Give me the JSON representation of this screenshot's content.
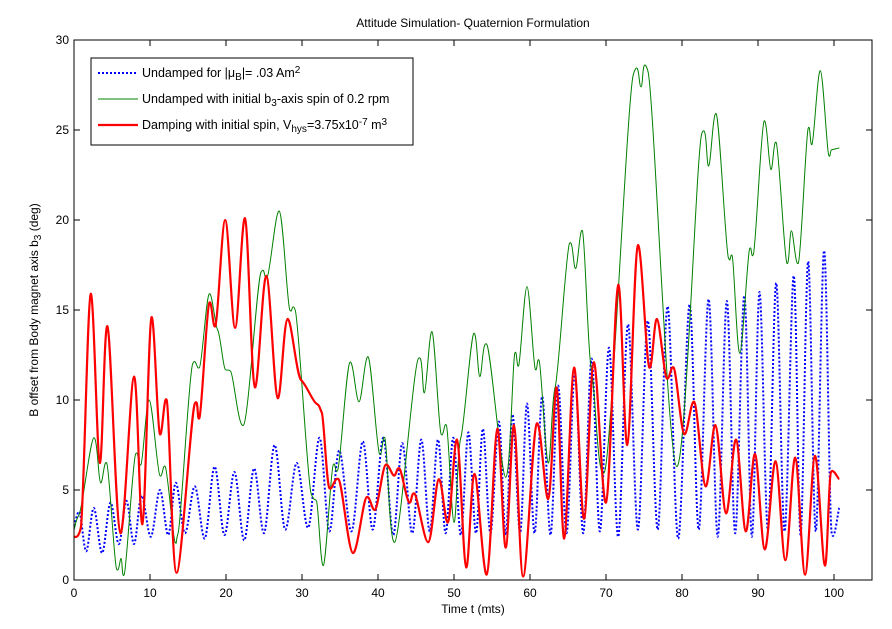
{
  "chart_data": {
    "type": "line",
    "title": "Attitude Simulation- Quaternion Formulation",
    "xlabel": "Time t (mts)",
    "ylabel_segments": [
      {
        "text": "B offset from Body magnet axis b",
        "style": "normal"
      },
      {
        "text": "3",
        "style": "sub"
      },
      {
        "text": " (deg)",
        "style": "normal"
      }
    ],
    "xlim": [
      0,
      105
    ],
    "ylim": [
      0,
      30
    ],
    "xticks": [
      0,
      10,
      20,
      30,
      40,
      50,
      60,
      70,
      80,
      90,
      100
    ],
    "yticks": [
      0,
      5,
      10,
      15,
      20,
      25,
      30
    ],
    "grid": false,
    "legend_position": "top-left",
    "series": [
      {
        "name": "Undamped for |μB|= .03 Am2",
        "legend_segments": [
          {
            "text": "Undamped for |μ",
            "style": "normal"
          },
          {
            "text": "B",
            "style": "sub"
          },
          {
            "text": "|= .03 Am",
            "style": "normal"
          },
          {
            "text": "2",
            "style": "sup"
          }
        ],
        "color": "#0000ff",
        "line_style": "dotted",
        "x": [
          0,
          0.7,
          1.6,
          2.6,
          3.7,
          4.8,
          5.9,
          6.9,
          7.9,
          8.9,
          10.1,
          11.3,
          12.4,
          13.4,
          14.6,
          15.9,
          17.2,
          18.5,
          19.8,
          21.1,
          22.4,
          23.7,
          25.0,
          26.4,
          27.8,
          29.3,
          30.8,
          32.3,
          33.6,
          34.9,
          36.5,
          38.0,
          39.3,
          40.7,
          42.0,
          43.2,
          44.5,
          45.7,
          46.8,
          47.9,
          48.9,
          49.9,
          50.9,
          51.9,
          52.9,
          53.8,
          54.8,
          55.9,
          56.8,
          57.7,
          58.7,
          59.6,
          60.6,
          61.6,
          62.7,
          63.7,
          64.8,
          65.9,
          67.0,
          68.1,
          69.2,
          70.4,
          71.6,
          72.9,
          74.2,
          75.5,
          76.8,
          78.1,
          79.5,
          81.0,
          82.2,
          83.5,
          84.7,
          85.9,
          87.0,
          88.2,
          89.2,
          90.2,
          91.3,
          92.4,
          93.5,
          94.7,
          95.6,
          96.6,
          97.6,
          98.7,
          99.7,
          100.7
        ],
        "y": [
          3.0,
          3.8,
          1.6,
          4.0,
          1.5,
          4.3,
          2.0,
          4.4,
          2.0,
          4.7,
          2.4,
          5.0,
          2.5,
          5.4,
          2.6,
          5.2,
          2.3,
          6.3,
          2.5,
          6.0,
          2.2,
          6.2,
          2.6,
          7.5,
          2.8,
          6.5,
          2.9,
          7.9,
          2.7,
          7.2,
          2.7,
          7.7,
          2.8,
          7.9,
          2.5,
          7.6,
          2.6,
          7.8,
          2.7,
          7.8,
          2.6,
          7.9,
          2.5,
          8.2,
          2.6,
          8.4,
          2.6,
          8.8,
          2.5,
          9.2,
          2.6,
          9.8,
          2.6,
          10.2,
          2.5,
          10.8,
          2.6,
          11.5,
          2.6,
          12.3,
          2.7,
          12.9,
          2.4,
          14.2,
          2.8,
          14.4,
          2.8,
          15.2,
          2.3,
          15.3,
          2.8,
          15.6,
          2.4,
          15.5,
          2.6,
          15.8,
          2.4,
          16.0,
          2.8,
          16.5,
          2.7,
          16.9,
          2.5,
          17.7,
          2.7,
          18.3,
          2.6,
          4.0
        ]
      },
      {
        "name": "Undamped with initial b3-axis spin of 0.2 rpm",
        "legend_segments": [
          {
            "text": "Undamped with initial b",
            "style": "normal"
          },
          {
            "text": "3",
            "style": "sub"
          },
          {
            "text": "-axis spin of 0.2 rpm",
            "style": "normal"
          }
        ],
        "color": "#008000",
        "line_style": "solid",
        "x": [
          0,
          0.65,
          2.6,
          3.5,
          4.3,
          5.6,
          6.2,
          6.6,
          8.1,
          8.8,
          9.9,
          11.3,
          12.0,
          13.3,
          13.7,
          15.6,
          16.5,
          17.8,
          18.9,
          19.9,
          20.6,
          22.3,
          24.6,
          25.4,
          27.0,
          28.4,
          29.1,
          31.2,
          31.9,
          32.8,
          34.1,
          34.7,
          36.3,
          37.5,
          38.7,
          40.2,
          40.9,
          42.2,
          45.3,
          46.1,
          47.1,
          48.3,
          49.0,
          50.0,
          50.9,
          52.6,
          53.4,
          54.3,
          56.8,
          58.0,
          58.5,
          59.6,
          60.7,
          61.2,
          62.4,
          63.3,
          65.2,
          66.0,
          66.9,
          68.1,
          69.8,
          73.6,
          74.6,
          75.5,
          79.3,
          82.6,
          83.5,
          84.5,
          86.1,
          86.6,
          87.6,
          88.9,
          89.4,
          90.8,
          91.7,
          92.4,
          93.8,
          94.4,
          95.3,
          96.6,
          97.1,
          98.2,
          99.3,
          99.7,
          100.7
        ],
        "y": [
          2.8,
          3.6,
          7.9,
          5.4,
          6.5,
          0.6,
          1.2,
          0.3,
          7.0,
          6.4,
          10.0,
          5.8,
          6.3,
          2.1,
          2.6,
          12.0,
          11.8,
          15.9,
          13.9,
          11.7,
          11.6,
          8.6,
          17.1,
          16.8,
          20.5,
          15.0,
          15.0,
          4.8,
          4.4,
          0.8,
          6.4,
          6.1,
          12.1,
          9.9,
          12.4,
          7.0,
          7.9,
          2.1,
          12.3,
          10.4,
          13.8,
          8.1,
          8.6,
          3.2,
          7.9,
          13.7,
          11.3,
          13.1,
          5.7,
          12.6,
          11.9,
          16.3,
          11.7,
          12.2,
          6.5,
          10.7,
          18.7,
          17.3,
          19.4,
          11.6,
          6.0,
          28.1,
          27.4,
          28.3,
          6.3,
          24.8,
          23.0,
          25.9,
          17.9,
          18.0,
          12.6,
          18.4,
          18.1,
          25.5,
          22.8,
          24.3,
          17.6,
          19.4,
          17.6,
          25.1,
          24.2,
          28.3,
          23.6,
          23.9,
          24.0
        ]
      },
      {
        "name": "Damping with initial spin, Vhys=3.75x10-7 m3",
        "legend_segments": [
          {
            "text": "Damping with initial spin, V",
            "style": "normal"
          },
          {
            "text": "hys",
            "style": "sub"
          },
          {
            "text": "=3.75x10",
            "style": "normal"
          },
          {
            "text": "-7",
            "style": "sup"
          },
          {
            "text": " m",
            "style": "normal"
          },
          {
            "text": "3",
            "style": "sup"
          }
        ],
        "color": "#ff0000",
        "line_style": "solid-thick",
        "x": [
          0,
          0.9,
          2.2,
          3.4,
          4.4,
          6.1,
          7.9,
          9.0,
          10.2,
          11.3,
          12.2,
          13.5,
          15.9,
          16.5,
          17.8,
          18.6,
          19.9,
          21.2,
          22.5,
          23.8,
          25.3,
          26.8,
          28.1,
          29.9,
          31.9,
          32.6,
          33.6,
          34.8,
          36.7,
          38.5,
          39.6,
          41.0,
          42.1,
          42.8,
          44.1,
          44.8,
          46.6,
          48.0,
          49.2,
          50.4,
          51.6,
          52.7,
          54.3,
          55.7,
          56.8,
          57.9,
          59.1,
          60.9,
          62.4,
          63.5,
          64.5,
          65.8,
          67.1,
          68.4,
          70.0,
          71.6,
          72.8,
          74.2,
          75.7,
          76.7,
          78.0,
          78.9,
          80.3,
          81.6,
          83.1,
          84.4,
          85.8,
          87.1,
          88.4,
          89.6,
          90.9,
          92.3,
          93.6,
          94.9,
          96.2,
          97.5,
          98.8,
          99.6,
          100.7
        ],
        "y": [
          2.4,
          2.9,
          15.9,
          6.5,
          14.1,
          2.6,
          11.3,
          3.1,
          14.6,
          8.1,
          10.0,
          0.4,
          9.8,
          9.0,
          15.4,
          14.1,
          20.0,
          14.0,
          20.1,
          10.7,
          16.9,
          10.1,
          14.5,
          11.1,
          9.8,
          9.3,
          5.1,
          5.6,
          1.5,
          4.6,
          3.9,
          6.4,
          5.8,
          6.2,
          4.3,
          4.8,
          2.1,
          5.6,
          3.2,
          7.8,
          0.7,
          5.9,
          0.3,
          8.4,
          1.8,
          8.6,
          0.2,
          8.7,
          4.5,
          10.7,
          2.3,
          11.8,
          3.4,
          12.1,
          4.3,
          16.4,
          7.5,
          18.6,
          11.8,
          14.5,
          11.2,
          11.8,
          8.1,
          9.9,
          5.2,
          8.6,
          3.7,
          7.8,
          2.7,
          7.0,
          1.7,
          6.6,
          1.1,
          6.8,
          0.3,
          6.9,
          0.8,
          6.0,
          5.6
        ]
      }
    ]
  }
}
